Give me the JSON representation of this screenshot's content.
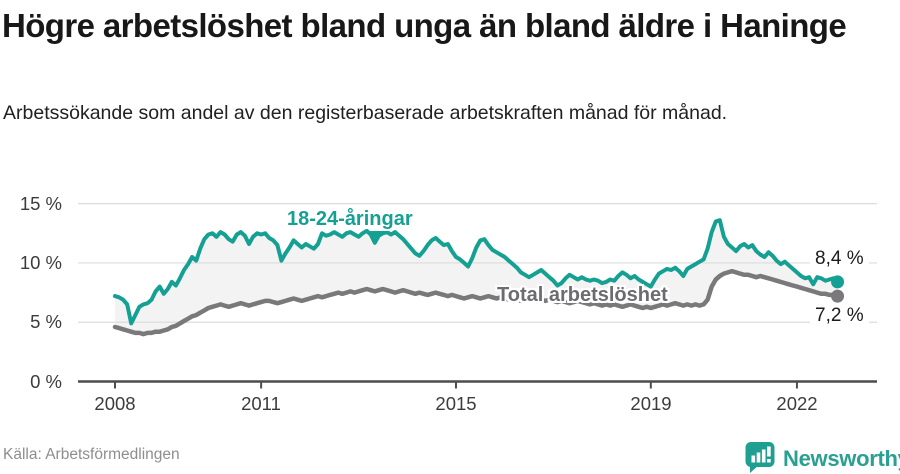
{
  "footer": {
    "source": "Källa: Arbetsförmedlingen",
    "brand": "Newsworthy"
  },
  "chart_data": {
    "type": "line",
    "title": "Högre arbetslöshet bland unga än bland äldre i Haninge",
    "subtitle": "Arbetssökande som andel av den registerbaserade arbetskraften månad för månad.",
    "unit": "%",
    "grid": true,
    "ylim": [
      0,
      15
    ],
    "x_range_years": [
      2008,
      2022.92
    ],
    "fill_between_color": "#f3f3f3",
    "axis_color": "#4d4d4d",
    "gridline_color": "#dcdcdc",
    "y_ticks": [
      {
        "label": "15 %",
        "value": 15
      },
      {
        "label": "10 %",
        "value": 10
      },
      {
        "label": "5 %",
        "value": 5
      },
      {
        "label": "0 %",
        "value": 0
      }
    ],
    "x_ticks": [
      {
        "label": "2008",
        "year": 2008
      },
      {
        "label": "2011",
        "year": 2011
      },
      {
        "label": "2015",
        "year": 2015
      },
      {
        "label": "2019",
        "year": 2019
      },
      {
        "label": "2022",
        "year": 2022
      }
    ],
    "series": [
      {
        "name": "18-24-åringar",
        "color": "#14a092",
        "end_label": "8,4 %",
        "end_value": 8.4,
        "start_year": 2008,
        "interval": "monthly",
        "values": [
          7.2,
          7.1,
          6.9,
          6.5,
          4.9,
          5.6,
          6.3,
          6.5,
          6.6,
          6.9,
          7.6,
          8.0,
          7.4,
          7.8,
          8.4,
          8.1,
          8.7,
          9.4,
          9.9,
          10.5,
          10.2,
          11.2,
          12.0,
          12.4,
          12.5,
          12.2,
          12.6,
          12.4,
          12.0,
          11.8,
          12.4,
          12.6,
          12.3,
          11.6,
          12.2,
          12.5,
          12.4,
          12.5,
          12.1,
          11.9,
          11.5,
          10.2,
          10.8,
          11.3,
          11.9,
          11.6,
          11.3,
          11.6,
          11.4,
          11.2,
          11.6,
          12.5,
          12.3,
          12.4,
          12.6,
          12.4,
          12.2,
          12.5,
          12.6,
          12.4,
          12.2,
          12.5,
          12.7,
          12.4,
          11.7,
          12.3,
          12.5,
          12.6,
          12.4,
          12.6,
          12.3,
          12.0,
          11.6,
          11.2,
          10.8,
          10.6,
          11.0,
          11.5,
          11.9,
          12.1,
          11.8,
          11.5,
          11.6,
          11.0,
          10.5,
          10.3,
          10.0,
          9.7,
          10.4,
          11.3,
          11.9,
          12.0,
          11.5,
          11.1,
          10.9,
          10.7,
          10.5,
          10.2,
          9.9,
          9.6,
          9.2,
          9.0,
          8.8,
          9.0,
          9.2,
          9.4,
          9.1,
          8.8,
          8.5,
          8.1,
          8.3,
          8.7,
          9.0,
          8.8,
          8.6,
          8.8,
          8.6,
          8.5,
          8.6,
          8.5,
          8.3,
          8.4,
          8.6,
          8.5,
          8.9,
          9.2,
          9.0,
          8.7,
          8.9,
          8.6,
          8.4,
          8.2,
          8.0,
          8.6,
          9.1,
          9.3,
          9.5,
          9.4,
          9.6,
          9.3,
          8.9,
          9.5,
          9.7,
          9.9,
          10.1,
          10.3,
          11.2,
          12.6,
          13.5,
          13.6,
          12.2,
          11.6,
          11.3,
          11.0,
          11.4,
          11.6,
          11.3,
          11.5,
          11.0,
          10.7,
          10.5,
          10.9,
          10.6,
          10.2,
          9.9,
          10.1,
          9.8,
          9.5,
          9.2,
          8.9,
          8.7,
          8.8,
          8.2,
          8.8,
          8.7,
          8.5,
          8.6,
          8.7,
          8.4
        ]
      },
      {
        "name": "Total arbetslöshet",
        "color": "#7a787b",
        "end_label": "7,2 %",
        "end_value": 7.2,
        "start_year": 2008,
        "interval": "monthly",
        "values": [
          4.6,
          4.5,
          4.4,
          4.3,
          4.2,
          4.1,
          4.1,
          4.0,
          4.1,
          4.1,
          4.2,
          4.2,
          4.3,
          4.4,
          4.6,
          4.7,
          4.9,
          5.1,
          5.3,
          5.5,
          5.6,
          5.8,
          6.0,
          6.2,
          6.3,
          6.4,
          6.5,
          6.4,
          6.3,
          6.4,
          6.5,
          6.6,
          6.5,
          6.4,
          6.5,
          6.6,
          6.7,
          6.8,
          6.8,
          6.7,
          6.6,
          6.7,
          6.8,
          6.9,
          7.0,
          6.9,
          6.8,
          6.9,
          7.0,
          7.1,
          7.2,
          7.1,
          7.2,
          7.3,
          7.4,
          7.5,
          7.4,
          7.5,
          7.6,
          7.5,
          7.6,
          7.7,
          7.8,
          7.7,
          7.6,
          7.7,
          7.8,
          7.7,
          7.6,
          7.5,
          7.6,
          7.7,
          7.6,
          7.5,
          7.4,
          7.5,
          7.4,
          7.3,
          7.4,
          7.5,
          7.4,
          7.3,
          7.2,
          7.3,
          7.2,
          7.1,
          7.0,
          7.1,
          7.2,
          7.1,
          7.0,
          7.1,
          7.2,
          7.1,
          7.0,
          7.1,
          7.0,
          6.9,
          7.0,
          6.9,
          6.8,
          6.9,
          7.0,
          6.9,
          6.8,
          6.9,
          6.8,
          6.9,
          6.8,
          6.7,
          6.8,
          6.7,
          6.6,
          6.7,
          6.8,
          6.7,
          6.6,
          6.5,
          6.6,
          6.5,
          6.4,
          6.5,
          6.4,
          6.5,
          6.4,
          6.3,
          6.4,
          6.5,
          6.4,
          6.3,
          6.2,
          6.3,
          6.2,
          6.3,
          6.4,
          6.5,
          6.4,
          6.5,
          6.6,
          6.5,
          6.4,
          6.5,
          6.4,
          6.5,
          6.4,
          6.5,
          6.9,
          8.0,
          8.6,
          8.9,
          9.1,
          9.2,
          9.3,
          9.2,
          9.1,
          9.0,
          9.0,
          8.9,
          8.8,
          8.9,
          8.8,
          8.7,
          8.6,
          8.5,
          8.4,
          8.3,
          8.2,
          8.1,
          8.0,
          7.9,
          7.8,
          7.7,
          7.6,
          7.5,
          7.4,
          7.4,
          7.3,
          7.3,
          7.2
        ]
      }
    ]
  }
}
